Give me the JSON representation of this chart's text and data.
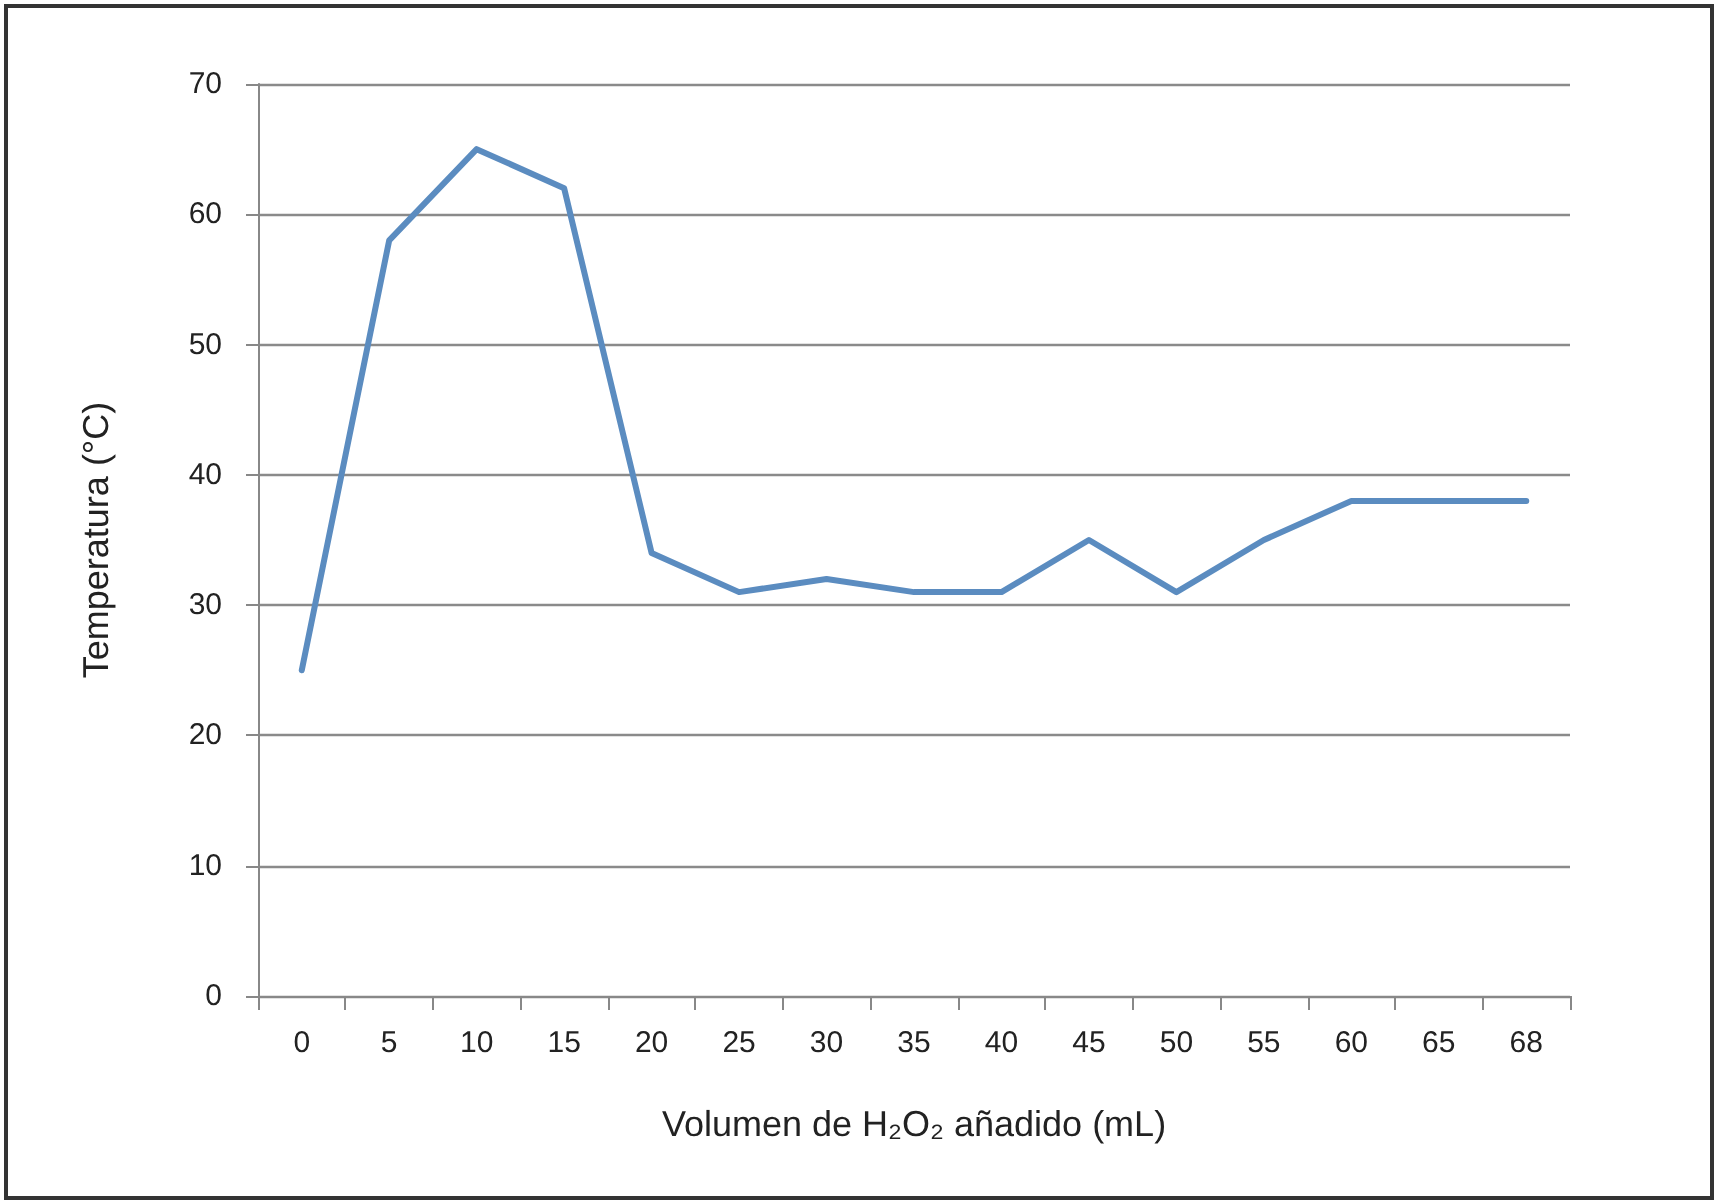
{
  "chart_data": {
    "type": "line",
    "xlabel": "Volumen de H₂O₂ añadido (mL)",
    "ylabel": "Temperatura (°C)",
    "categories": [
      "0",
      "5",
      "10",
      "15",
      "20",
      "25",
      "30",
      "35",
      "40",
      "45",
      "50",
      "55",
      "60",
      "65",
      "68"
    ],
    "series": [
      {
        "color": "#5b8cc0",
        "values": [
          25,
          58,
          65,
          62,
          34,
          31,
          32,
          31,
          31,
          35,
          31,
          35,
          38,
          38,
          38
        ]
      }
    ],
    "ylim": [
      0,
      70
    ],
    "yticks": [
      0,
      10,
      20,
      30,
      40,
      50,
      60,
      70
    ],
    "grid": "y",
    "marker": "none",
    "line_style": "solid"
  }
}
